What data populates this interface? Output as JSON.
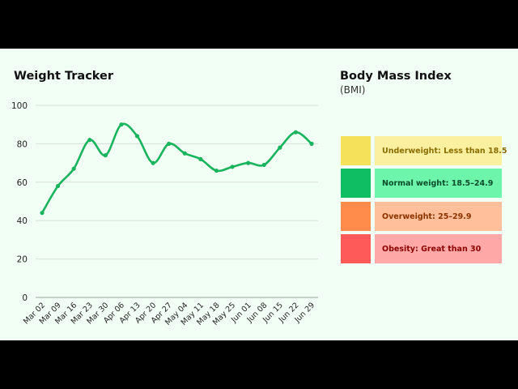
{
  "chart_data": {
    "type": "line",
    "title": "Weight Tracker",
    "xlabel": "",
    "ylabel": "",
    "categories": [
      "Mar 02",
      "Mar 09",
      "Mar 16",
      "Mar 23",
      "Mar 30",
      "Apr 06",
      "Apr 13",
      "Apr 20",
      "Apr 27",
      "May 04",
      "May 11",
      "May 18",
      "May 25",
      "Jun 01",
      "Jun 08",
      "Jun 15",
      "Jun 22",
      "Jun 29"
    ],
    "series": [
      {
        "values": [
          44,
          58,
          67,
          82,
          74,
          90,
          84,
          70,
          80,
          75,
          72,
          66,
          68,
          70,
          69,
          78,
          86,
          80
        ]
      }
    ],
    "ylim": [
      0,
      100
    ],
    "yticks": [
      0,
      20,
      40,
      60,
      80,
      100
    ],
    "grid": true,
    "line_color": "#19b45d"
  },
  "bmi": {
    "title": "Body Mass Index",
    "subtitle": "(BMI)",
    "categories": [
      {
        "label": "Underweight: Less than 18.5",
        "swatch_color": "#f5e25a",
        "box_color": "#fbf0a0",
        "text_color": "#8a6d00"
      },
      {
        "label": "Normal weight: 18.5–24.9",
        "swatch_color": "#0fbd63",
        "box_color": "#6df5ac",
        "text_color": "#0d4d2a"
      },
      {
        "label": "Overweight: 25–29.9",
        "swatch_color": "#ff8c4a",
        "box_color": "#ffbf9a",
        "text_color": "#8a3300"
      },
      {
        "label": "Obesity: Great than 30",
        "swatch_color": "#ff5a5a",
        "box_color": "#ffa8a8",
        "text_color": "#8a0000"
      }
    ]
  }
}
